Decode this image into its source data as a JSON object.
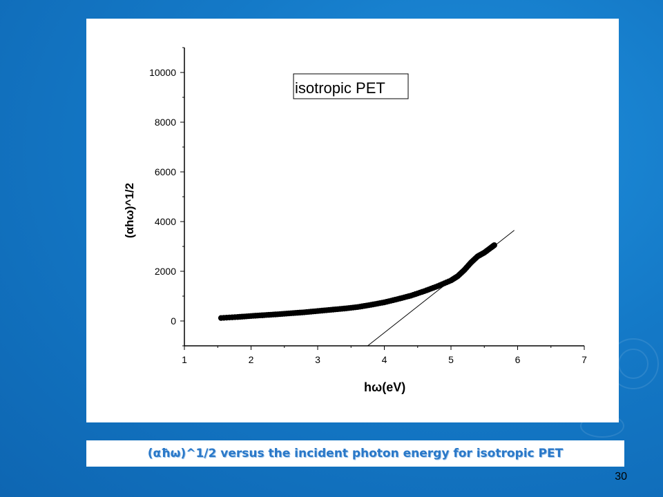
{
  "slide": {
    "caption": "(αħω)^1/2 versus the incident photon energy for isotropic PET",
    "number": "30"
  },
  "chart_data": {
    "type": "scatter",
    "legend_label": "isotropic PET",
    "legend_placement": "top-center",
    "xlabel": "hω(eV)",
    "ylabel": "(αhω)^1/2",
    "xlim": [
      1,
      7
    ],
    "ylim": [
      -1000,
      11000
    ],
    "xticks": [
      1,
      2,
      3,
      4,
      5,
      6,
      7
    ],
    "yticks": [
      0,
      2000,
      4000,
      6000,
      8000,
      10000
    ],
    "grid": false,
    "series": [
      {
        "points": [
          [
            1.55,
            120
          ],
          [
            1.8,
            160
          ],
          [
            2.0,
            200
          ],
          [
            2.2,
            235
          ],
          [
            2.4,
            270
          ],
          [
            2.6,
            310
          ],
          [
            2.8,
            350
          ],
          [
            3.0,
            400
          ],
          [
            3.2,
            450
          ],
          [
            3.4,
            500
          ],
          [
            3.6,
            560
          ],
          [
            3.8,
            650
          ],
          [
            4.0,
            750
          ],
          [
            4.2,
            880
          ],
          [
            4.4,
            1020
          ],
          [
            4.6,
            1200
          ],
          [
            4.8,
            1400
          ],
          [
            5.0,
            1630
          ],
          [
            5.1,
            1800
          ],
          [
            5.2,
            2050
          ],
          [
            5.3,
            2350
          ],
          [
            5.4,
            2600
          ],
          [
            5.5,
            2750
          ],
          [
            5.6,
            2950
          ],
          [
            5.65,
            3050
          ]
        ]
      }
    ],
    "fit_line": {
      "x": [
        3.75,
        5.95
      ],
      "y": [
        -1000,
        3650
      ]
    }
  }
}
